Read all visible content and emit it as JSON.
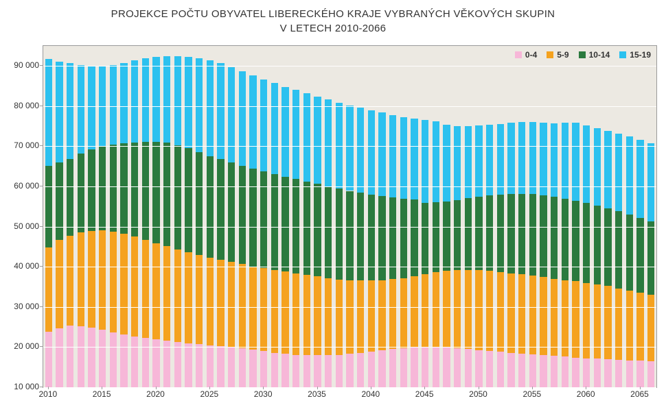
{
  "chart": {
    "type": "stacked-bar",
    "title_line1": "PROJEKCE POČTU OBYVATEL LIBERECKÉHO KRAJE VYBRANÝCH VĚKOVÝCH SKUPIN",
    "title_line2": "V LETECH 2010-2066",
    "title_fontsize": 15,
    "background_color": "#ffffff",
    "plot_background": "#ece9e2",
    "grid_color": "#ffffff",
    "border_color": "#9a9a9a",
    "text_color": "#333333",
    "tick_fontsize": 12,
    "legend_fontsize": 12,
    "legend_position": "top-right-inside",
    "ylim": [
      10000,
      95000
    ],
    "ytick_step": 10000,
    "yticks": [
      10000,
      20000,
      30000,
      40000,
      50000,
      60000,
      70000,
      80000,
      90000
    ],
    "ytick_labels": [
      "10 000",
      "20 000",
      "30 000",
      "40 000",
      "50 000",
      "60 000",
      "70 000",
      "80 000",
      "90 000"
    ],
    "xticks": [
      2010,
      2015,
      2020,
      2025,
      2030,
      2035,
      2040,
      2045,
      2050,
      2055,
      2060,
      2065
    ],
    "years": [
      2010,
      2011,
      2012,
      2013,
      2014,
      2015,
      2016,
      2017,
      2018,
      2019,
      2020,
      2021,
      2022,
      2023,
      2024,
      2025,
      2026,
      2027,
      2028,
      2029,
      2030,
      2031,
      2032,
      2033,
      2034,
      2035,
      2036,
      2037,
      2038,
      2039,
      2040,
      2041,
      2042,
      2043,
      2044,
      2045,
      2046,
      2047,
      2048,
      2049,
      2050,
      2051,
      2052,
      2053,
      2054,
      2055,
      2056,
      2057,
      2058,
      2059,
      2060,
      2061,
      2062,
      2063,
      2064,
      2065,
      2066
    ],
    "series": [
      {
        "name": "0-4",
        "color": "#f7b7d8"
      },
      {
        "name": "5-9",
        "color": "#f5a21f"
      },
      {
        "name": "10-14",
        "color": "#2b7a3e"
      },
      {
        "name": "15-19",
        "color": "#2cc1ef"
      }
    ],
    "stack_tops": {
      "s0": [
        23800,
        24700,
        25400,
        25200,
        24800,
        24300,
        23700,
        23100,
        22700,
        22300,
        22000,
        21600,
        21300,
        21000,
        20700,
        20400,
        20200,
        20000,
        19700,
        19400,
        19000,
        18600,
        18300,
        18100,
        18000,
        18000,
        18000,
        18100,
        18300,
        18500,
        18800,
        19200,
        19500,
        19800,
        20000,
        20000,
        20000,
        19900,
        19700,
        19500,
        19300,
        19100,
        18800,
        18600,
        18400,
        18200,
        18000,
        17800,
        17600,
        17400,
        17200,
        17100,
        17000,
        16800,
        16700,
        16600,
        16500
      ],
      "s1": [
        44800,
        46700,
        47800,
        48500,
        48900,
        49100,
        48700,
        48200,
        47500,
        46700,
        45800,
        45100,
        44300,
        43700,
        43000,
        42300,
        41800,
        41200,
        40700,
        40100,
        39700,
        39200,
        38800,
        38400,
        38000,
        37600,
        37200,
        36800,
        36600,
        36600,
        36600,
        36700,
        36900,
        37200,
        37600,
        38100,
        38600,
        39000,
        39200,
        39200,
        39200,
        39000,
        38700,
        38400,
        38100,
        37800,
        37400,
        37000,
        36700,
        36400,
        36000,
        35600,
        35200,
        34600,
        34100,
        33600,
        33100
      ],
      "s2": [
        65200,
        65900,
        66900,
        68200,
        69200,
        69900,
        70500,
        70700,
        70900,
        71100,
        71100,
        71000,
        70200,
        69500,
        68500,
        67600,
        66900,
        66000,
        65200,
        64400,
        63700,
        63100,
        62400,
        61900,
        61200,
        60700,
        60000,
        59500,
        58900,
        58500,
        58000,
        57600,
        57200,
        56900,
        56800,
        55900,
        56000,
        56200,
        56600,
        57100,
        57500,
        57800,
        58000,
        58200,
        58200,
        58200,
        57800,
        57400,
        56900,
        56400,
        55900,
        55300,
        54600,
        53800,
        53000,
        52200,
        51300
      ],
      "s3": [
        91700,
        91000,
        90700,
        90300,
        90000,
        89800,
        90200,
        90800,
        91500,
        92000,
        92300,
        92400,
        92400,
        92200,
        92000,
        91500,
        90700,
        89700,
        88700,
        87700,
        86700,
        85800,
        84800,
        84000,
        83200,
        82300,
        81700,
        80900,
        80200,
        79600,
        78900,
        78400,
        77800,
        77300,
        76900,
        76500,
        76300,
        75400,
        75100,
        75100,
        75200,
        75400,
        75600,
        75900,
        76000,
        76000,
        75800,
        75700,
        75800,
        75800,
        75200,
        74500,
        73800,
        73100,
        72500,
        71600,
        70700
      ]
    },
    "bar_width_ratio": 0.66
  }
}
